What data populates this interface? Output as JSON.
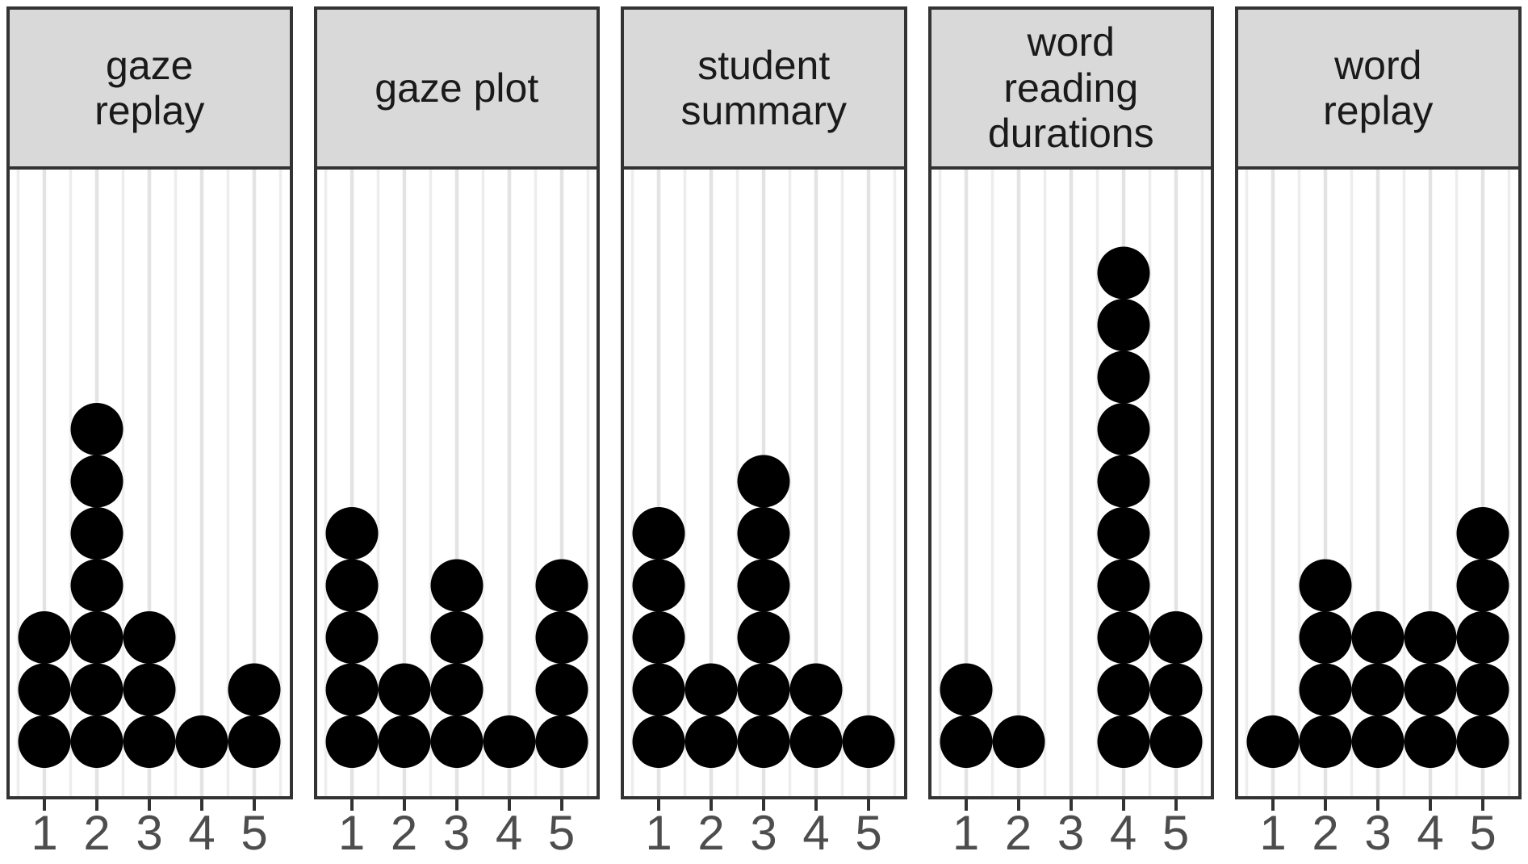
{
  "chart_data": {
    "type": "bar",
    "variant": "faceted_stacked_dot_plot",
    "categories": [
      "1",
      "2",
      "3",
      "4",
      "5"
    ],
    "panels": [
      {
        "label": "gaze\nreplay",
        "values": [
          3,
          7,
          3,
          1,
          2
        ]
      },
      {
        "label": "gaze plot",
        "values": [
          5,
          2,
          4,
          1,
          4
        ]
      },
      {
        "label": "student\nsummary",
        "values": [
          5,
          2,
          6,
          2,
          1
        ]
      },
      {
        "label": "word\nreading\ndurations",
        "values": [
          2,
          1,
          0,
          10,
          3
        ]
      },
      {
        "label": "word\nreplay",
        "values": [
          1,
          4,
          3,
          3,
          5
        ]
      }
    ],
    "xlabel": "",
    "ylabel": "",
    "ylim": [
      0,
      12
    ],
    "legend": "none",
    "grid": "vertical lines at every half unit",
    "colors": {
      "dot": "#000000",
      "header_fill": "#d9d9d9",
      "panel_border": "#333333",
      "grid_major": "#e3e3e3",
      "grid_minor": "#ededed",
      "axis_tick": "#333333",
      "axis_text": "#4d4d4d",
      "background": "#ffffff"
    }
  }
}
